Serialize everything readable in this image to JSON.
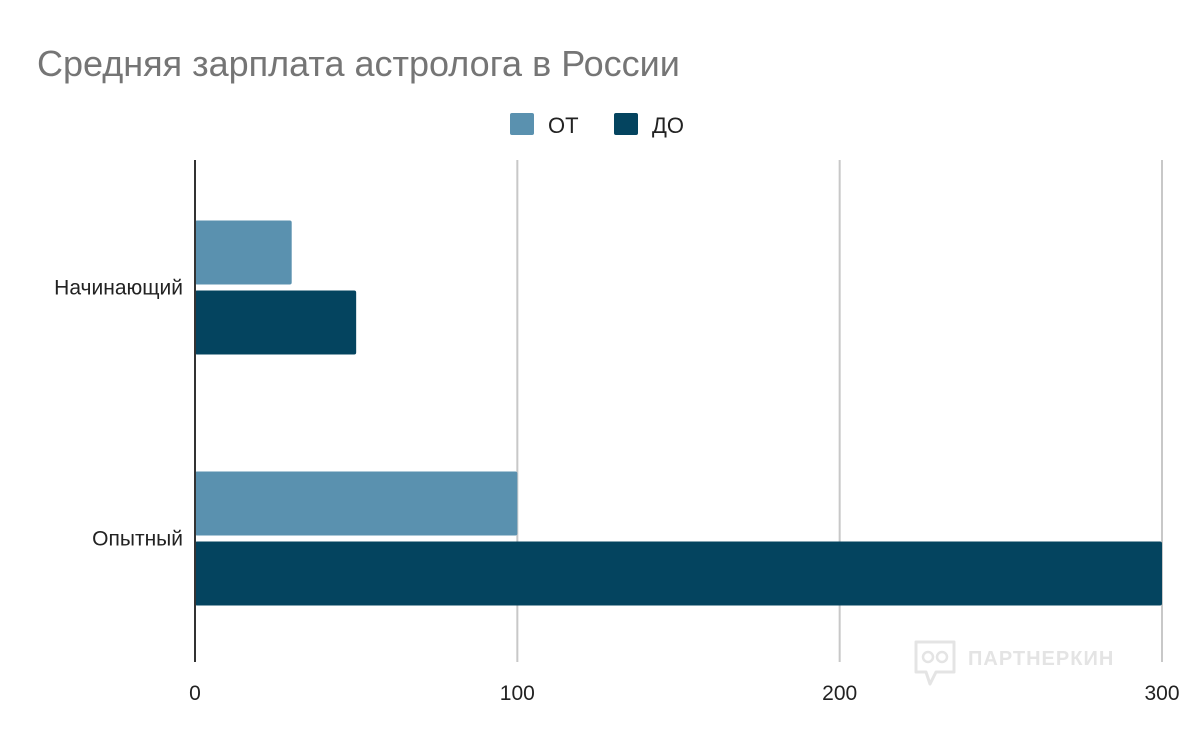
{
  "chart_data": {
    "type": "bar",
    "orientation": "horizontal",
    "title": "Средняя зарплата астролога в России",
    "categories": [
      "Начинающий",
      "Опытный"
    ],
    "series": [
      {
        "name": "ОТ",
        "values": [
          30,
          100
        ],
        "color": "#5a91af"
      },
      {
        "name": "ДО",
        "values": [
          50,
          300
        ],
        "color": "#04445f"
      }
    ],
    "xlim": [
      0,
      300
    ],
    "xticks": [
      "0",
      "100",
      "200",
      "300"
    ],
    "grid": true,
    "legend_position": "top-center"
  },
  "watermark": {
    "text": "ПАРТНЕРКИН",
    "color": "#e4e4e4"
  }
}
